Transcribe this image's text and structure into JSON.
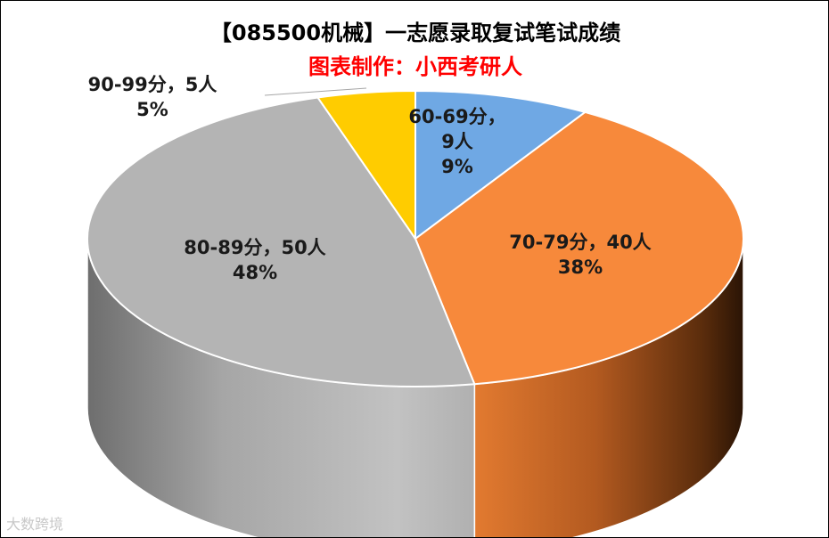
{
  "title": "【085500机械】一志愿录取复试笔试成绩",
  "subtitle": "图表制作：小西考研人",
  "watermark": "大数跨境",
  "chart_data": {
    "type": "pie",
    "style": "3d",
    "title": "【085500机械】一志愿录取复试笔试成绩",
    "subtitle": "图表制作：小西考研人",
    "slices": [
      {
        "name": "60-69分",
        "value": 9,
        "percent": "9%",
        "color": "#6fa8e4",
        "label_lines": [
          "60-69分，",
          "9人",
          "9%"
        ]
      },
      {
        "name": "70-79分",
        "value": 40,
        "percent": "38%",
        "color": "#f7893b",
        "label_lines": [
          "70-79分，40人",
          "38%"
        ]
      },
      {
        "name": "80-89分",
        "value": 50,
        "percent": "48%",
        "color": "#b4b4b4",
        "label_lines": [
          "80-89分，50人",
          "48%"
        ]
      },
      {
        "name": "90-99分",
        "value": 5,
        "percent": "5%",
        "color": "#ffcc00",
        "label_lines": [
          "90-99分，5人",
          "5%"
        ]
      }
    ]
  }
}
